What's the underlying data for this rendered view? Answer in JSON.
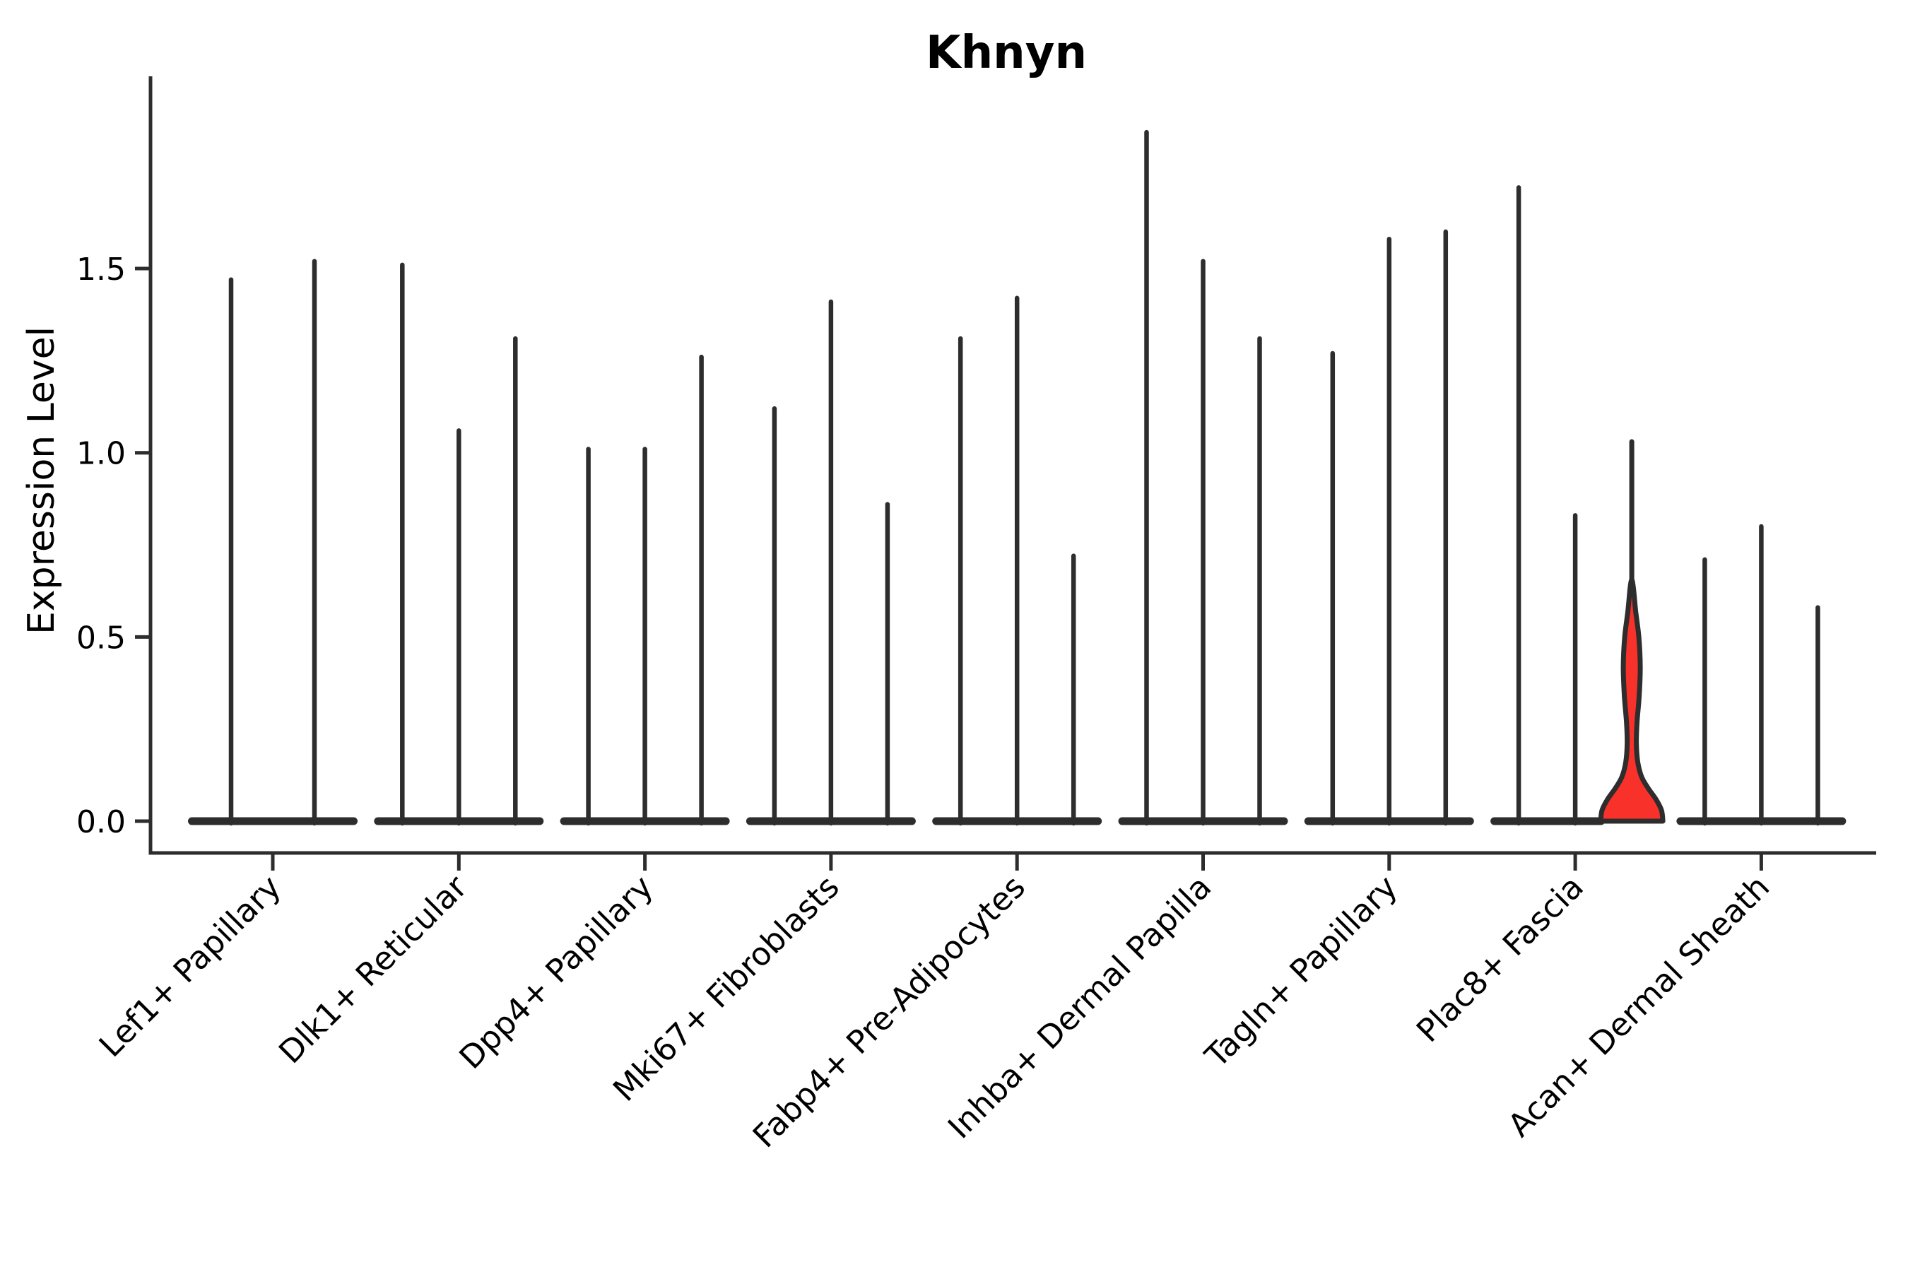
{
  "chart_data": {
    "type": "violin",
    "title": "Khnyn",
    "ylabel": "Expression Level",
    "xlabel": "",
    "yticks": [
      0.0,
      0.5,
      1.0,
      1.5
    ],
    "ylim": [
      -0.09,
      2.0
    ],
    "grid": false,
    "legend_position": "none",
    "background_color": "#FFFFFF",
    "line_color": "#2D2D2D",
    "highlight_fill_color": "#F8312B",
    "categories": [
      "Lef1+ Papillary",
      "Dlk1+ Reticular",
      "Dpp4+ Papillary",
      "Mki67+ Fibroblasts",
      "Fabp4+ Pre-Adipocytes",
      "Inhba+ Dermal Papilla",
      "Tagln+ Papillary",
      "Plac8+ Fascia",
      "Acan+ Dermal Sheath"
    ],
    "groups": [
      {
        "category": "Lef1+ Papillary",
        "violin_maxima": [
          1.47,
          1.52
        ]
      },
      {
        "category": "Dlk1+ Reticular",
        "violin_maxima": [
          1.51,
          1.06,
          1.31
        ]
      },
      {
        "category": "Dpp4+ Papillary",
        "violin_maxima": [
          1.01,
          1.01,
          1.26
        ]
      },
      {
        "category": "Mki67+ Fibroblasts",
        "violin_maxima": [
          1.12,
          1.41,
          0.86
        ]
      },
      {
        "category": "Fabp4+ Pre-Adipocytes",
        "violin_maxima": [
          1.31,
          1.42,
          0.72
        ]
      },
      {
        "category": "Inhba+ Dermal Papilla",
        "violin_maxima": [
          1.87,
          1.52,
          1.31
        ]
      },
      {
        "category": "Tagln+ Papillary",
        "violin_maxima": [
          1.27,
          1.58,
          1.6
        ]
      },
      {
        "category": "Plac8+ Fascia",
        "violin_maxima": [
          1.72,
          0.83,
          1.03
        ],
        "highlighted_violin_index": 2
      },
      {
        "category": "Acan+ Dermal Sheath",
        "violin_maxima": [
          0.71,
          0.8,
          0.58
        ]
      }
    ],
    "highlight": {
      "category": "Plac8+ Fascia",
      "violin_index": 2,
      "spike_top": 1.03,
      "body_profile_values": [
        0.0,
        0.03,
        0.06,
        0.09,
        0.12,
        0.16,
        0.21,
        0.27,
        0.34,
        0.42,
        0.5,
        0.57,
        0.63
      ],
      "body_profile_halfwidths": [
        44,
        42,
        34,
        23,
        14,
        8.5,
        6.5,
        7.5,
        10.5,
        12,
        10,
        5.5,
        2.5
      ],
      "body_apex_value": 0.655
    },
    "notes": "All violins except the highlighted one collapse to thin vertical spikes with wide flat bases at expression 0"
  }
}
